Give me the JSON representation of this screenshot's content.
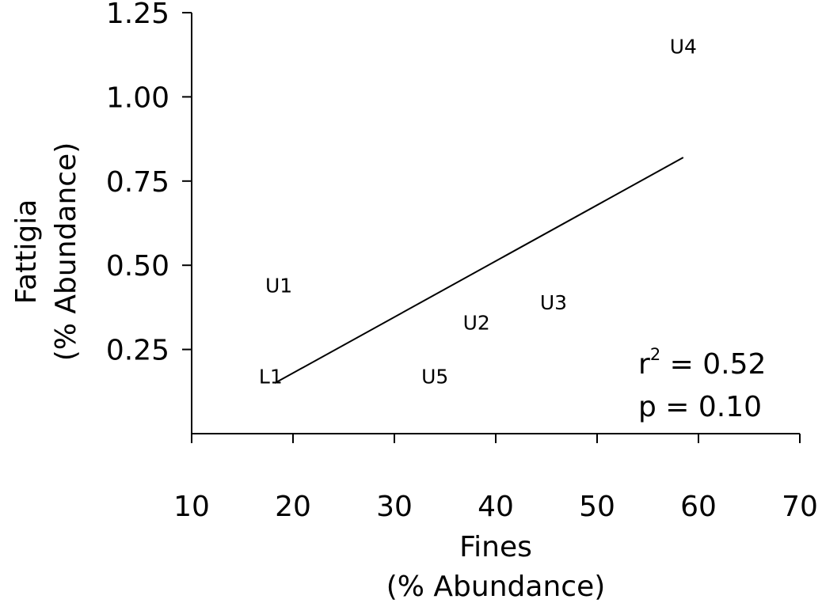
{
  "chart_data": {
    "type": "scatter",
    "title": "",
    "xlabel": [
      "Fines",
      "(% Abundance)"
    ],
    "ylabel": [
      "Fattigia",
      "(% Abundance)"
    ],
    "xlim": [
      10,
      70
    ],
    "ylim": [
      0,
      1.25
    ],
    "grid": false,
    "xticks": [
      "10",
      "20",
      "30",
      "40",
      "50",
      "60",
      "70"
    ],
    "yticks": [
      "0.25",
      "0.50",
      "0.75",
      "1.00",
      "1.25"
    ],
    "points": [
      {
        "label": "L1",
        "x": 17.8,
        "y": 0.17
      },
      {
        "label": "U1",
        "x": 18.6,
        "y": 0.44
      },
      {
        "label": "U2",
        "x": 38.1,
        "y": 0.33
      },
      {
        "label": "U3",
        "x": 45.7,
        "y": 0.39
      },
      {
        "label": "U4",
        "x": 58.5,
        "y": 1.15
      },
      {
        "label": "U5",
        "x": 34.0,
        "y": 0.17
      }
    ],
    "fit_line": {
      "x": [
        18.2,
        58.5
      ],
      "y": [
        0.15,
        0.82
      ]
    },
    "stats": {
      "r2_prefix": "r",
      "r2_sup": "2",
      "r2_value": " = 0.52",
      "p": "p = 0.10"
    }
  }
}
